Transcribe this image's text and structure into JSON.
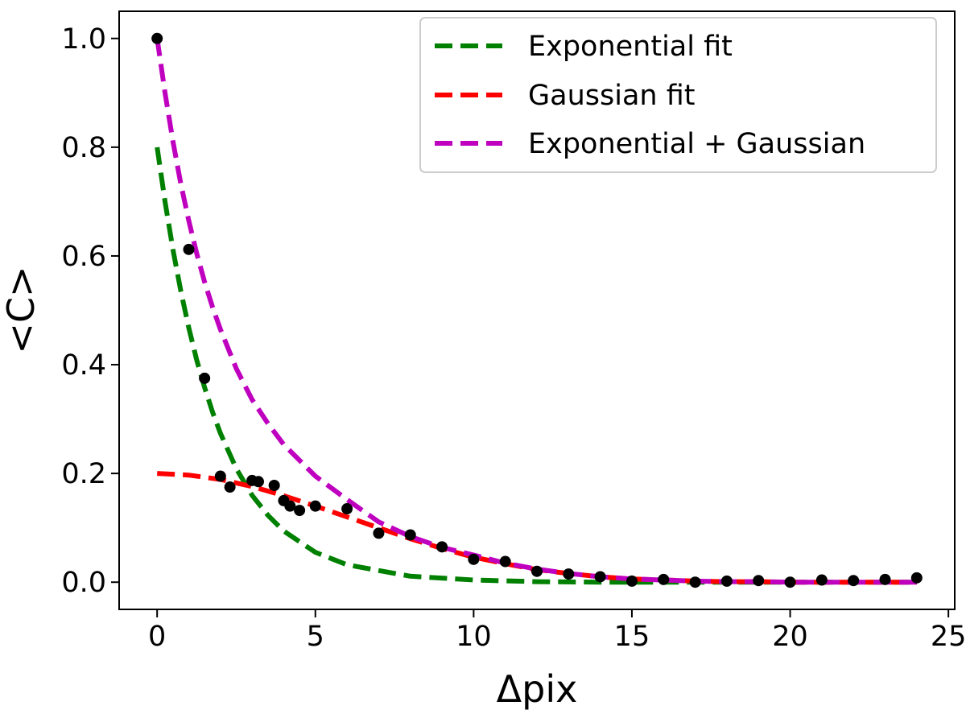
{
  "chart_data": {
    "type": "line",
    "title": "",
    "xlabel": "Δpix",
    "ylabel": "<C>",
    "xlim": [
      -1.2,
      25.2
    ],
    "ylim": [
      -0.05,
      1.05
    ],
    "x_ticks": [
      0,
      5,
      10,
      15,
      20,
      25
    ],
    "x_tick_labels": [
      "0",
      "5",
      "10",
      "15",
      "20",
      "25"
    ],
    "y_ticks": [
      0.0,
      0.2,
      0.4,
      0.6,
      0.8,
      1.0
    ],
    "y_tick_labels": [
      "0.0",
      "0.2",
      "0.4",
      "0.6",
      "0.8",
      "1.0"
    ],
    "grid": false,
    "legend_position": "top-right",
    "data_points": {
      "x": [
        0,
        1,
        1.5,
        2,
        2.3,
        3,
        3.2,
        3.7,
        4,
        4.2,
        4.5,
        5,
        6,
        7,
        8,
        9,
        10,
        11,
        12,
        13,
        14,
        15,
        16,
        17,
        18,
        19,
        20,
        21,
        22,
        23,
        24
      ],
      "y": [
        1.0,
        0.612,
        0.375,
        0.195,
        0.175,
        0.187,
        0.185,
        0.178,
        0.15,
        0.14,
        0.132,
        0.14,
        0.135,
        0.09,
        0.087,
        0.065,
        0.042,
        0.038,
        0.02,
        0.015,
        0.01,
        0.002,
        0.005,
        0.0,
        0.002,
        0.003,
        0.0,
        0.004,
        0.003,
        0.005,
        0.008
      ],
      "color": "#000000"
    },
    "series": [
      {
        "name": "Exponential fit",
        "color": "#008000",
        "x": [
          0,
          0.25,
          0.5,
          0.75,
          1,
          1.25,
          1.5,
          1.75,
          2,
          2.5,
          3,
          3.5,
          4,
          5,
          6,
          8,
          10,
          12,
          14,
          16,
          18,
          20,
          22,
          24
        ],
        "y": [
          0.8,
          0.7,
          0.612,
          0.535,
          0.468,
          0.409,
          0.358,
          0.313,
          0.274,
          0.209,
          0.16,
          0.123,
          0.094,
          0.055,
          0.032,
          0.011,
          0.004,
          0.001,
          0.0,
          0.0,
          0.0,
          0.0,
          0.0,
          0.0
        ]
      },
      {
        "name": "Gaussian fit",
        "color": "#ff0000",
        "x": [
          0,
          1,
          2,
          3,
          4,
          5,
          6,
          7,
          8,
          9,
          10,
          11,
          12,
          13,
          14,
          15,
          16,
          17,
          18,
          19,
          20,
          21,
          22,
          23,
          24
        ],
        "y": [
          0.2,
          0.197,
          0.189,
          0.176,
          0.159,
          0.14,
          0.12,
          0.1,
          0.08,
          0.062,
          0.046,
          0.034,
          0.023,
          0.016,
          0.01,
          0.006,
          0.004,
          0.002,
          0.001,
          0.001,
          0.0,
          0.0,
          0.0,
          0.0,
          0.0
        ]
      },
      {
        "name": "Exponential + Gaussian",
        "color": "#bf00bf",
        "x": [
          0,
          0.25,
          0.5,
          0.75,
          1,
          1.25,
          1.5,
          1.75,
          2,
          2.5,
          3,
          3.5,
          4,
          5,
          6,
          7,
          8,
          9,
          10,
          11,
          12,
          13,
          14,
          15,
          16,
          17,
          18,
          19,
          20,
          21,
          22,
          23,
          24
        ],
        "y": [
          1.0,
          0.9,
          0.811,
          0.732,
          0.665,
          0.605,
          0.552,
          0.506,
          0.465,
          0.393,
          0.336,
          0.292,
          0.253,
          0.195,
          0.152,
          0.111,
          0.084,
          0.064,
          0.05,
          0.035,
          0.024,
          0.016,
          0.01,
          0.006,
          0.004,
          0.002,
          0.001,
          0.001,
          0.0,
          0.0,
          0.0,
          0.0,
          0.0
        ]
      }
    ]
  }
}
